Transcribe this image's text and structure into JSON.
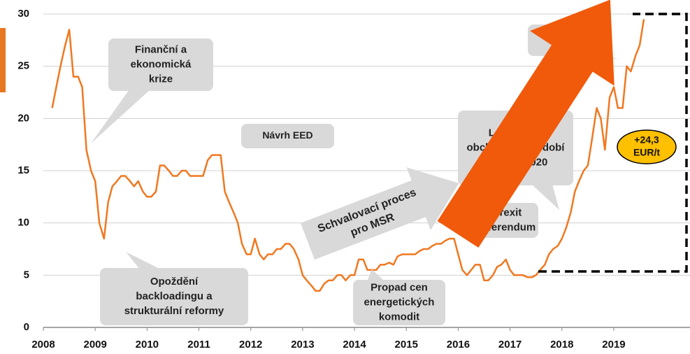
{
  "chart_data": {
    "type": "line",
    "color": "#f07820",
    "xlim": [
      2008,
      2020.47
    ],
    "ylim": [
      0,
      30
    ],
    "xticks": [
      2008,
      2009,
      2010,
      2011,
      2012,
      2013,
      2014,
      2015,
      2016,
      2017,
      2018,
      2019
    ],
    "yticks": [
      0,
      5,
      10,
      15,
      20,
      25,
      30
    ],
    "grid": true,
    "x": [
      2008.17,
      2008.25,
      2008.33,
      2008.42,
      2008.5,
      2008.58,
      2008.67,
      2008.75,
      2008.83,
      2008.92,
      2009.0,
      2009.08,
      2009.17,
      2009.25,
      2009.33,
      2009.42,
      2009.5,
      2009.58,
      2009.67,
      2009.75,
      2009.83,
      2009.92,
      2010.0,
      2010.08,
      2010.17,
      2010.25,
      2010.33,
      2010.42,
      2010.5,
      2010.58,
      2010.67,
      2010.75,
      2010.83,
      2010.92,
      2011.0,
      2011.08,
      2011.17,
      2011.25,
      2011.33,
      2011.42,
      2011.5,
      2011.58,
      2011.67,
      2011.75,
      2011.83,
      2011.92,
      2012.0,
      2012.08,
      2012.17,
      2012.25,
      2012.33,
      2012.42,
      2012.5,
      2012.58,
      2012.67,
      2012.75,
      2012.83,
      2012.92,
      2013.0,
      2013.08,
      2013.17,
      2013.25,
      2013.33,
      2013.42,
      2013.5,
      2013.58,
      2013.67,
      2013.75,
      2013.83,
      2013.92,
      2014.0,
      2014.08,
      2014.17,
      2014.25,
      2014.33,
      2014.42,
      2014.5,
      2014.58,
      2014.67,
      2014.75,
      2014.83,
      2014.92,
      2015.0,
      2015.08,
      2015.17,
      2015.25,
      2015.33,
      2015.42,
      2015.5,
      2015.58,
      2015.67,
      2015.75,
      2015.83,
      2015.92,
      2016.0,
      2016.08,
      2016.17,
      2016.25,
      2016.33,
      2016.42,
      2016.5,
      2016.58,
      2016.67,
      2016.75,
      2016.83,
      2016.92,
      2017.0,
      2017.08,
      2017.17,
      2017.25,
      2017.33,
      2017.42,
      2017.5,
      2017.58,
      2017.67,
      2017.75,
      2017.83,
      2017.92,
      2018.0,
      2018.08,
      2018.17,
      2018.25,
      2018.33,
      2018.42,
      2018.5,
      2018.58,
      2018.67,
      2018.75,
      2018.83,
      2018.92,
      2019.0,
      2019.08,
      2019.17,
      2019.25,
      2019.33,
      2019.42,
      2019.5,
      2019.58
    ],
    "values": [
      21,
      23,
      25,
      27,
      28.5,
      24,
      24,
      23,
      17,
      15,
      14,
      10,
      8.5,
      12,
      13.5,
      14,
      14.5,
      14.5,
      14,
      13.5,
      14,
      13,
      12.5,
      12.5,
      13,
      15.5,
      15.5,
      15,
      14.5,
      14.5,
      15,
      15,
      14.5,
      14.5,
      14.5,
      14.5,
      16,
      16.5,
      16.5,
      16.5,
      13,
      12,
      11,
      10,
      8,
      7,
      7,
      8.5,
      7,
      6.5,
      7,
      7,
      7.5,
      7.5,
      8,
      8,
      7.5,
      6.5,
      5,
      4.5,
      4,
      3.5,
      3.5,
      4.2,
      4.5,
      4.5,
      5,
      5,
      4.5,
      5,
      5,
      6.5,
      6.5,
      5.5,
      5.5,
      5.5,
      6,
      6,
      6.2,
      6,
      6.8,
      7,
      7,
      7,
      7,
      7.3,
      7.5,
      7.5,
      7.8,
      8,
      8,
      8.3,
      8.5,
      8.5,
      7,
      5.5,
      5,
      5.5,
      6,
      6,
      4.5,
      4.5,
      5,
      5.8,
      6,
      6.5,
      5.5,
      5,
      5,
      5,
      4.8,
      4.8,
      5,
      5.5,
      6,
      7,
      7.5,
      7.8,
      8.5,
      9.5,
      11,
      13,
      14,
      15,
      15.5,
      18,
      21,
      20,
      17,
      22,
      23,
      21,
      21,
      25,
      24.5,
      26,
      27,
      29.5
    ],
    "annotations": [
      {
        "lines": [
          "Finanční a",
          "ekonomická",
          "krize"
        ]
      },
      {
        "lines": [
          "Návrh EED"
        ]
      },
      {
        "lines": [
          "Opoždění",
          "backloadingu a",
          "strukturální reformy"
        ]
      },
      {
        "lines": [
          "Propad cen",
          "energetických",
          "komodit"
        ]
      },
      {
        "lines": [
          "Schvalovací proces",
          "pro MSR"
        ]
      },
      {
        "lines": [
          "Legislativa",
          "obchodního období",
          "po roce 2020"
        ]
      },
      {
        "lines": [
          "Brexit",
          "referendum"
        ]
      },
      {
        "lines": [
          "+24,3",
          "EUR/t"
        ]
      }
    ]
  }
}
